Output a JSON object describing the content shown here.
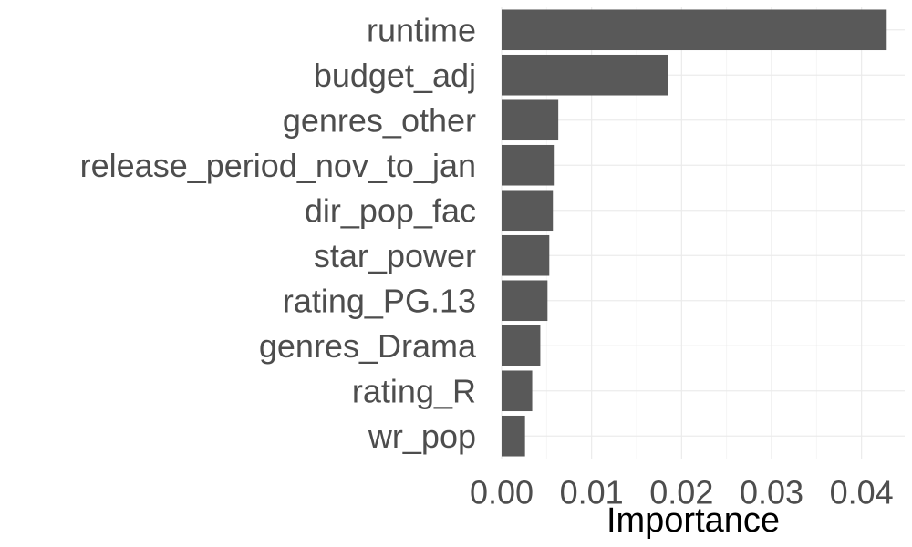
{
  "chart_data": {
    "type": "bar",
    "orientation": "horizontal",
    "categories": [
      "runtime",
      "budget_adj",
      "genres_other",
      "release_period_nov_to_jan",
      "dir_pop_fac",
      "star_power",
      "rating_PG.13",
      "genres_Drama",
      "rating_R",
      "wr_pop"
    ],
    "values": [
      0.0428,
      0.0185,
      0.0063,
      0.0059,
      0.0057,
      0.0053,
      0.0051,
      0.0043,
      0.0034,
      0.0026
    ],
    "title": "",
    "xlabel": "Importance",
    "ylabel": "",
    "xlim": [
      0,
      0.0448
    ],
    "xticks": [
      0,
      0.01,
      0.02,
      0.03,
      0.04
    ],
    "xtick_labels": [
      "0.00",
      "0.01",
      "0.02",
      "0.03",
      "0.04"
    ],
    "grid": true,
    "legend": "none",
    "bar_color": "#595959",
    "grid_color": "#ebebeb"
  }
}
